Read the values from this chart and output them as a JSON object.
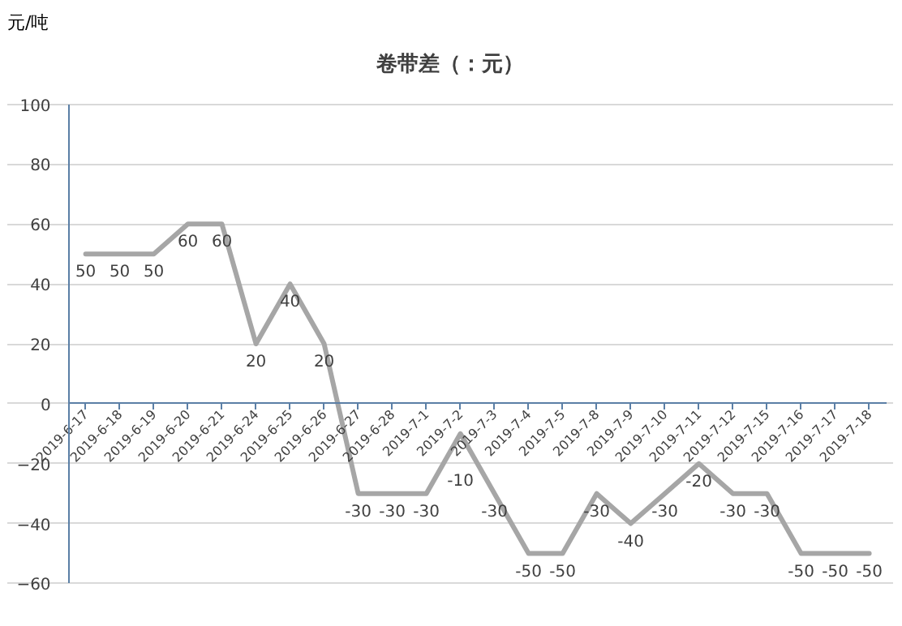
{
  "chart_data": {
    "type": "line",
    "title": "卷带差（：元）",
    "ylabel": "元/吨",
    "categories": [
      "2019-6-17",
      "2019-6-18",
      "2019-6-19",
      "2019-6-20",
      "2019-6-21",
      "2019-6-24",
      "2019-6-25",
      "2019-6-26",
      "2019-6-27",
      "2019-6-28",
      "2019-7-1",
      "2019-7-2",
      "2019-7-3",
      "2019-7-4",
      "2019-7-5",
      "2019-7-8",
      "2019-7-9",
      "2019-7-10",
      "2019-7-11",
      "2019-7-12",
      "2019-7-15",
      "2019-7-16",
      "2019-7-17",
      "2019-7-18"
    ],
    "series": [
      {
        "color": "#a6a6a6",
        "values": [
          50,
          50,
          50,
          60,
          60,
          20,
          40,
          20,
          -30,
          -30,
          -30,
          -10,
          -30,
          -50,
          -50,
          -30,
          -40,
          -30,
          -20,
          -30,
          -30,
          -50,
          -50,
          -50
        ]
      }
    ],
    "ylim": [
      -60,
      100
    ],
    "yticks": [
      -60,
      -40,
      -20,
      0,
      20,
      40,
      60,
      80,
      100
    ],
    "grid": "y",
    "data_labels": true,
    "marker": "none",
    "line_style": "solid"
  }
}
